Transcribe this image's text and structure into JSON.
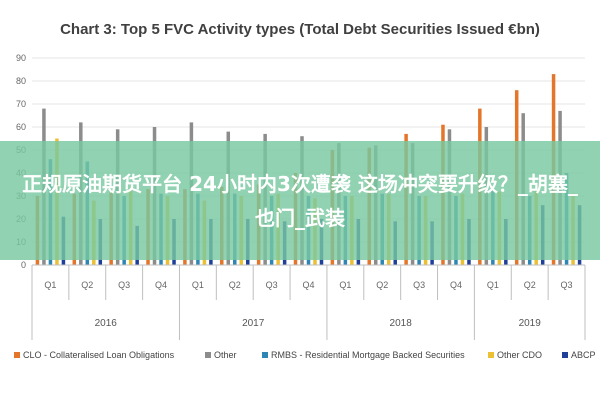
{
  "chart_data": {
    "type": "bar",
    "title": "Chart 3: Top 5 FVC Activity types (Total Debt Securities Issued €bn)",
    "ylim": [
      0,
      90
    ],
    "yticks": [
      0,
      10,
      20,
      30,
      40,
      50,
      60,
      70,
      80,
      90
    ],
    "grid": true,
    "legend_position": "bottom",
    "categories": [
      "Q1",
      "Q2",
      "Q3",
      "Q4",
      "Q1",
      "Q2",
      "Q3",
      "Q4",
      "Q1",
      "Q2",
      "Q3",
      "Q4",
      "Q1",
      "Q2",
      "Q3"
    ],
    "year_groups": [
      {
        "label": "2016",
        "count": 4
      },
      {
        "label": "2017",
        "count": 4
      },
      {
        "label": "2018",
        "count": 4
      },
      {
        "label": "2019",
        "count": 3
      }
    ],
    "series": [
      {
        "name": "CLO - Collateralised Loan Obligations",
        "color": "#e3762a",
        "values": [
          30,
          31,
          32,
          33,
          33,
          34,
          35,
          40,
          50,
          51,
          57,
          61,
          68,
          76,
          83
        ]
      },
      {
        "name": "Other",
        "color": "#8c8c8c",
        "values": [
          68,
          62,
          59,
          60,
          62,
          58,
          57,
          56,
          53,
          52,
          53,
          59,
          60,
          66,
          67
        ]
      },
      {
        "name": "RMBS - Residential Mortgage Backed Securities",
        "color": "#2e86b5",
        "values": [
          46,
          45,
          30,
          31,
          31,
          31,
          30,
          30,
          30,
          31,
          30,
          30,
          33,
          30,
          40
        ]
      },
      {
        "name": "Other CDO",
        "color": "#ecc035",
        "values": [
          55,
          28,
          33,
          30,
          28,
          30,
          31,
          29,
          30,
          31,
          30,
          31,
          32,
          33,
          31
        ]
      },
      {
        "name": "ABCP",
        "color": "#1f3f99",
        "values": [
          21,
          20,
          17,
          20,
          20,
          20,
          19,
          20,
          20,
          19,
          19,
          20,
          20,
          26,
          26
        ]
      }
    ]
  },
  "overlay": {
    "text": "正规原油期货平台 24小时内3次遭袭 这场冲突要升级？_胡塞_也门_武装"
  }
}
